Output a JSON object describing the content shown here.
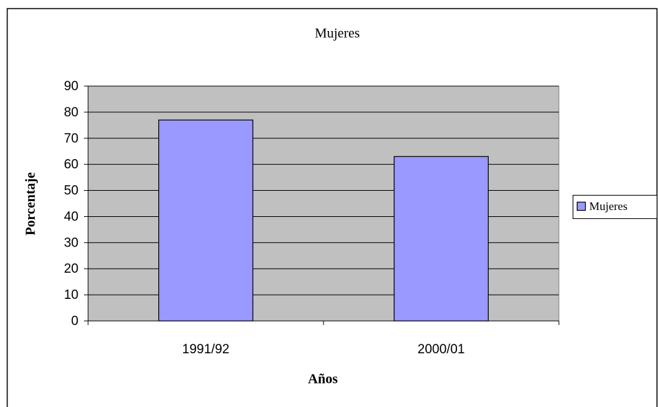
{
  "chart_data": {
    "type": "bar",
    "title": "Mujeres",
    "x_label": "Años",
    "y_label": "Porcentaje",
    "categories": [
      "1991/92",
      "2000/01"
    ],
    "series": [
      {
        "name": "Mujeres",
        "color": "#9999ff",
        "values": [
          77,
          63
        ]
      }
    ],
    "ylim": [
      0,
      90
    ],
    "yticks": [
      0,
      10,
      20,
      30,
      40,
      50,
      60,
      70,
      80,
      90
    ],
    "grid": true,
    "legend": "right"
  }
}
